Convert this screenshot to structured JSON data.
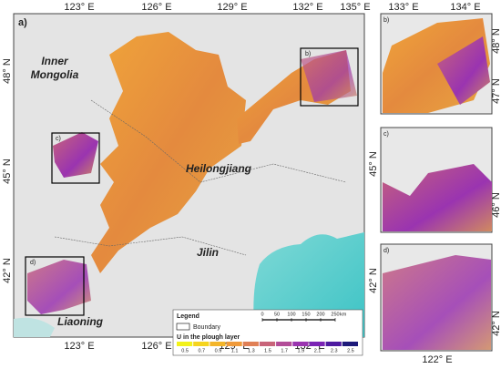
{
  "main_map": {
    "panel_label": "a)",
    "top_ticks": [
      "123° E",
      "126° E",
      "129° E",
      "132° E",
      "135° E"
    ],
    "bottom_ticks": [
      "123° E",
      "126° E",
      "129° E",
      "132° E"
    ],
    "left_ticks": [
      "48° N",
      "45° N",
      "42° N"
    ],
    "places": [
      "Inner Mongolia",
      "Heilongjiang",
      "Jilin",
      "Liaoning"
    ],
    "inset_boxes": [
      "b)",
      "c)",
      "d)"
    ]
  },
  "legend": {
    "title": "Legend",
    "boundary": "Boundary",
    "variable": "U in the plough layer",
    "classes": [
      0.5,
      0.7,
      0.9,
      1.1,
      1.3,
      1.5,
      1.7,
      1.9,
      2.1,
      2.3,
      2.5
    ],
    "colors": [
      "#f2f21a",
      "#f5d41e",
      "#f3b52a",
      "#ef9a3a",
      "#e07f55",
      "#c8647a",
      "#b24c98",
      "#9a34b0",
      "#7a23b5",
      "#4d1aa0",
      "#1d1a7a"
    ],
    "scale": {
      "ticks": [
        0,
        50,
        100,
        150,
        200,
        250
      ],
      "unit": "km"
    }
  },
  "side_panels": [
    {
      "label": "b)",
      "top_ticks": [
        "133° E",
        "134° E"
      ],
      "right_ticks": [
        "48° N",
        "47° N"
      ]
    },
    {
      "label": "c)",
      "left_ticks": [
        "45° N"
      ],
      "right_ticks": [
        "46° N"
      ]
    },
    {
      "label": "d)",
      "left_ticks": [
        "42° N"
      ],
      "right_ticks": [
        "42° N"
      ],
      "bottom_ticks": [
        "122° E"
      ]
    }
  ]
}
